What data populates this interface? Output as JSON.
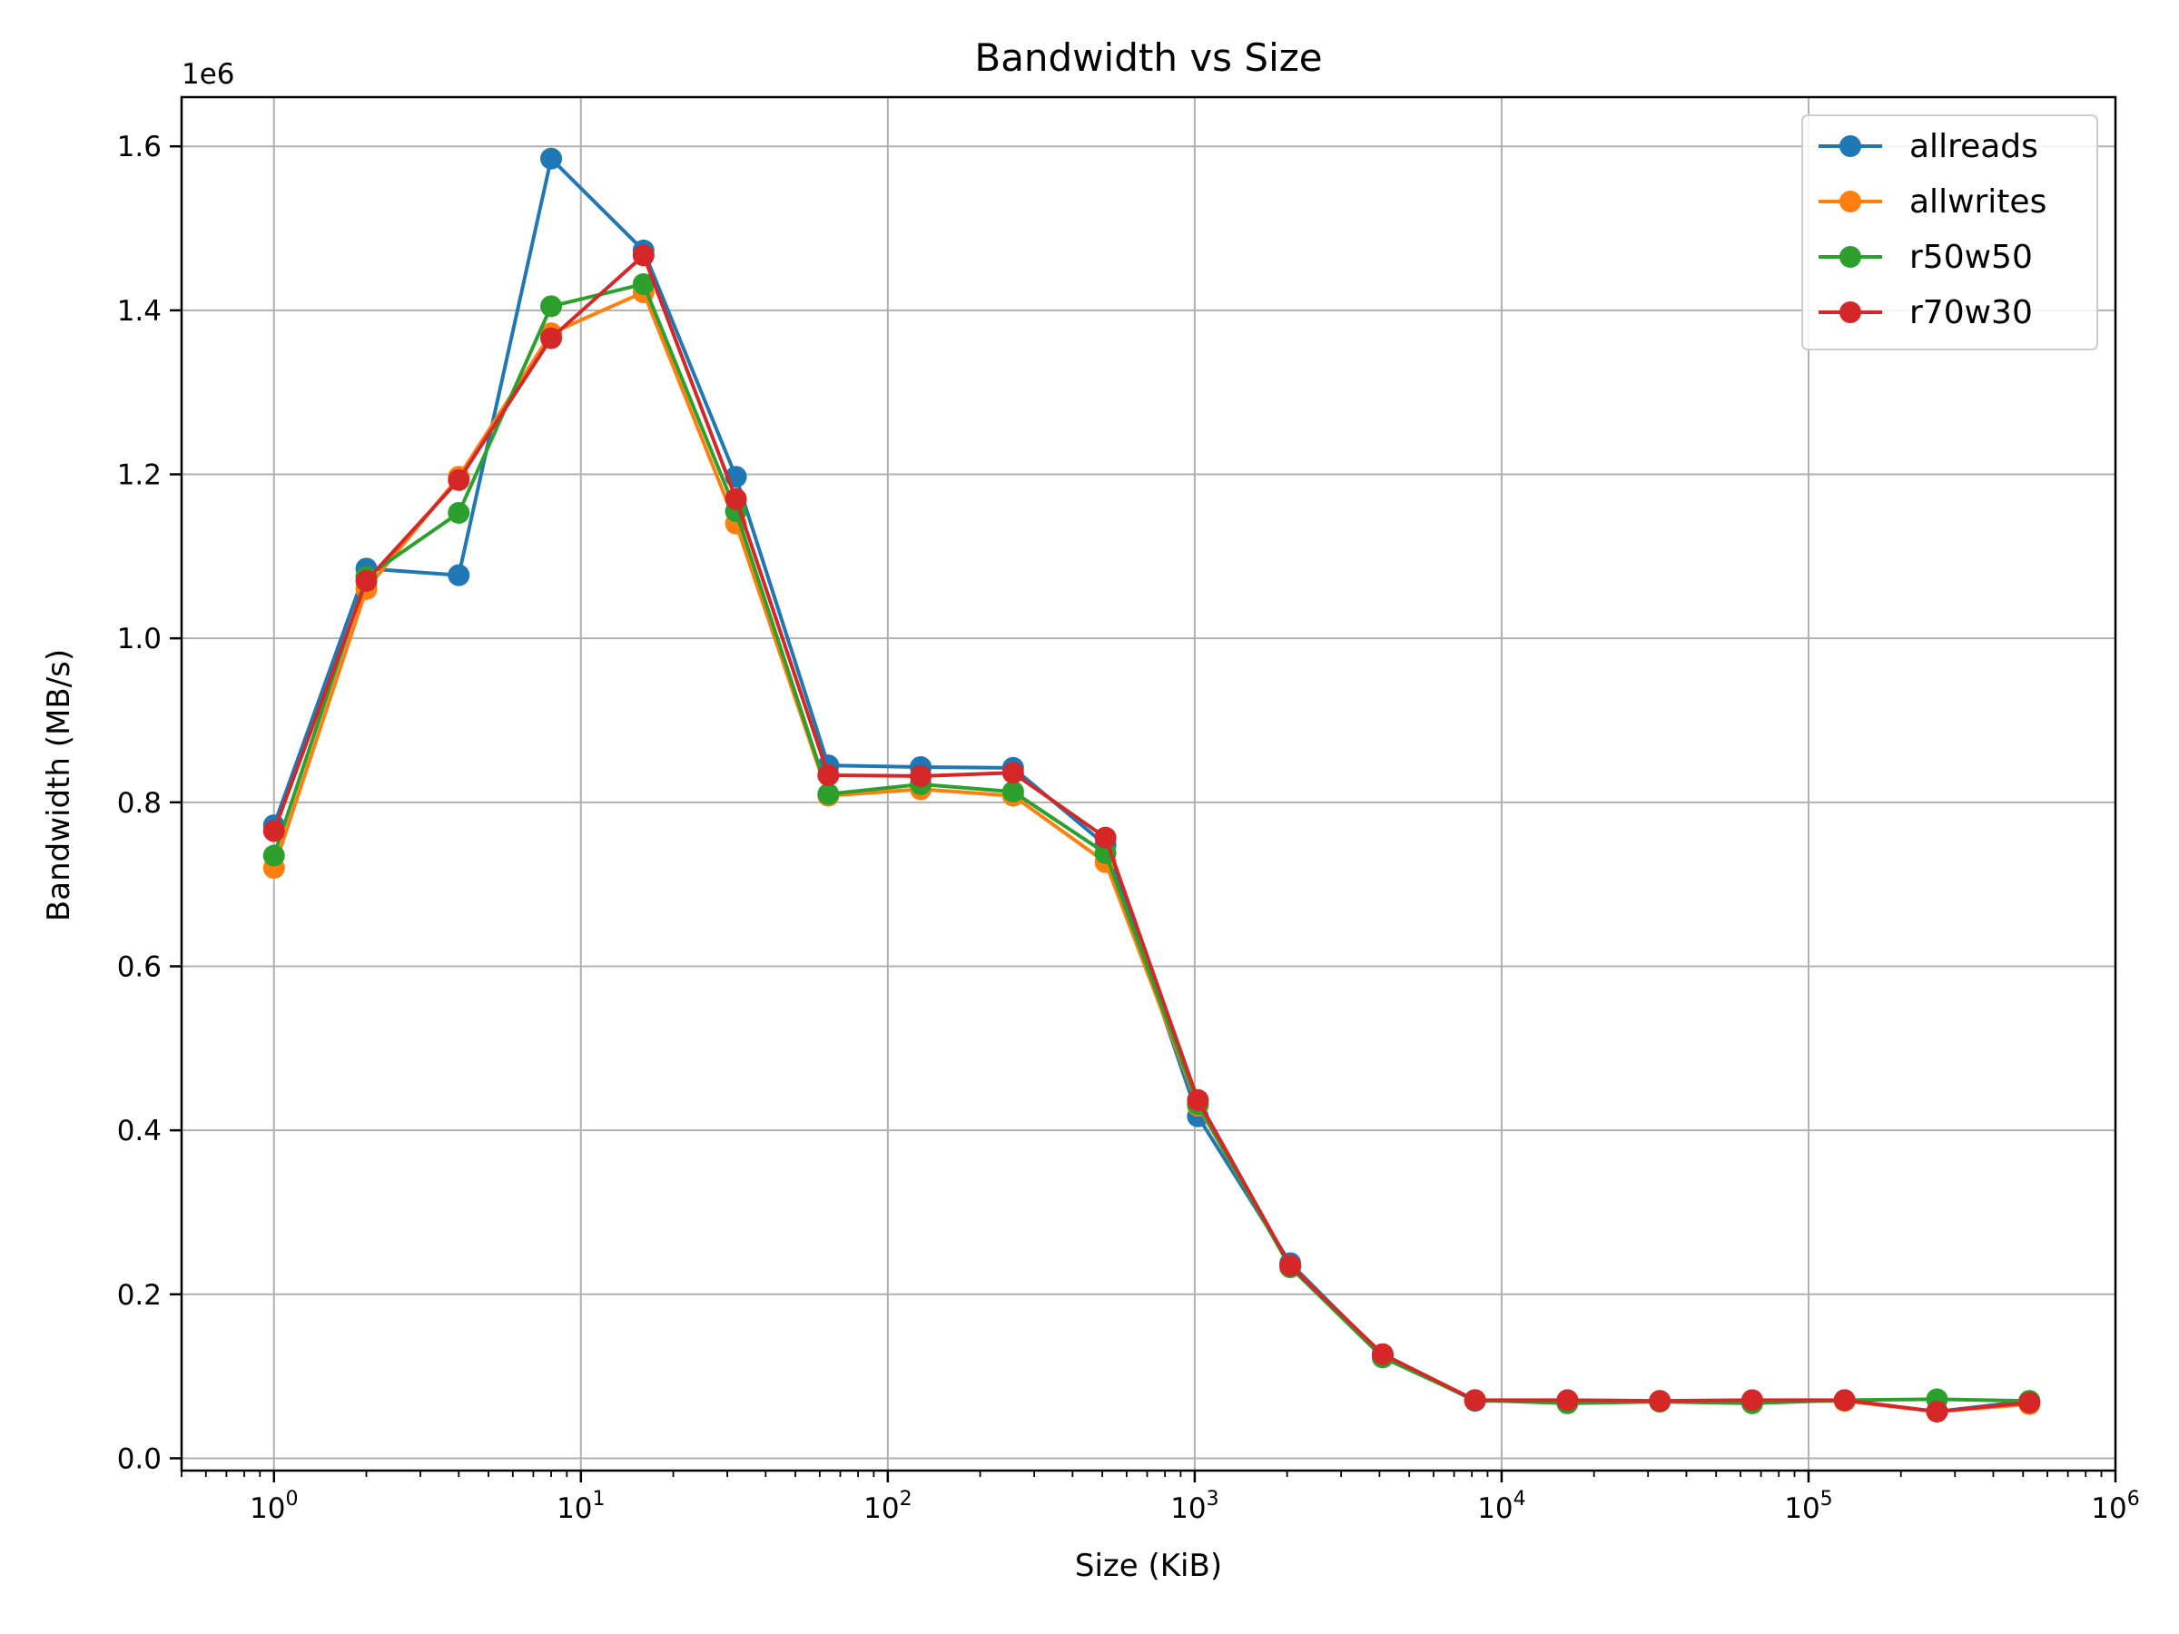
{
  "chart_data": {
    "type": "line",
    "title": "Bandwidth vs Size",
    "xlabel": "Size (KiB)",
    "ylabel": "Bandwidth (MB/s)",
    "y_offset_label": "1e6",
    "x_scale": "log",
    "xlim": [
      0.5,
      1000000
    ],
    "ylim": [
      -15000,
      1660000
    ],
    "grid": true,
    "legend_position": "top-right",
    "x": [
      1,
      2,
      4,
      8,
      16,
      32,
      64,
      128,
      256,
      512,
      1024,
      2048,
      4096,
      8192,
      16384,
      32768,
      65536,
      131072,
      262144,
      524288
    ],
    "x_ticks": [
      {
        "value": 1,
        "base": "10",
        "exp": "0"
      },
      {
        "value": 10,
        "base": "10",
        "exp": "1"
      },
      {
        "value": 100,
        "base": "10",
        "exp": "2"
      },
      {
        "value": 1000,
        "base": "10",
        "exp": "3"
      },
      {
        "value": 10000,
        "base": "10",
        "exp": "4"
      },
      {
        "value": 100000,
        "base": "10",
        "exp": "5"
      },
      {
        "value": 1000000,
        "base": "10",
        "exp": "6"
      }
    ],
    "y_ticks": [
      {
        "value": 0,
        "label": "0.0"
      },
      {
        "value": 200000,
        "label": "0.2"
      },
      {
        "value": 400000,
        "label": "0.4"
      },
      {
        "value": 600000,
        "label": "0.6"
      },
      {
        "value": 800000,
        "label": "0.8"
      },
      {
        "value": 1000000,
        "label": "1.0"
      },
      {
        "value": 1200000,
        "label": "1.2"
      },
      {
        "value": 1400000,
        "label": "1.4"
      },
      {
        "value": 1600000,
        "label": "1.6"
      }
    ],
    "series": [
      {
        "name": "allreads",
        "color": "#1f77b4",
        "values": [
          772000,
          1085000,
          1077000,
          1585000,
          1473000,
          1197000,
          845000,
          843000,
          842000,
          748000,
          417000,
          238000,
          125000,
          70000,
          70000,
          70000,
          70000,
          70000,
          57000,
          70000
        ]
      },
      {
        "name": "allwrites",
        "color": "#ff7f0e",
        "values": [
          720000,
          1060000,
          1197000,
          1372000,
          1422000,
          1140000,
          808000,
          816000,
          808000,
          727000,
          430000,
          235000,
          126000,
          71000,
          70000,
          70000,
          70000,
          70000,
          57000,
          66000
        ]
      },
      {
        "name": "r50w50",
        "color": "#2ca02c",
        "values": [
          735000,
          1075000,
          1153000,
          1405000,
          1432000,
          1155000,
          810000,
          822000,
          813000,
          738000,
          432000,
          233000,
          123000,
          71000,
          67000,
          69000,
          67000,
          71000,
          72000,
          70000
        ]
      },
      {
        "name": "r70w30",
        "color": "#d62728",
        "values": [
          765000,
          1070000,
          1193000,
          1366000,
          1467000,
          1170000,
          833000,
          832000,
          836000,
          757000,
          437000,
          235000,
          127000,
          71000,
          71000,
          70000,
          71000,
          71000,
          57000,
          68000
        ]
      }
    ]
  }
}
